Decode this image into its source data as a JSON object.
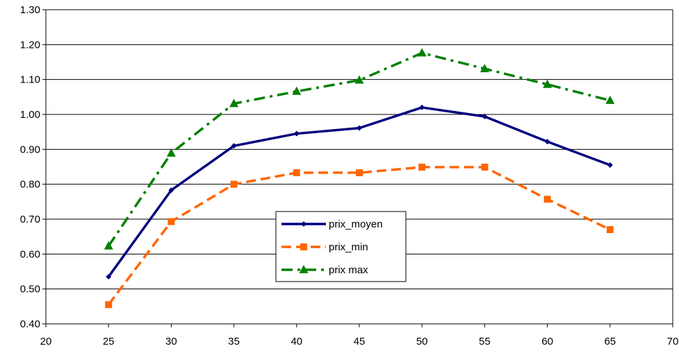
{
  "chart_data": {
    "type": "line",
    "title": "",
    "xlabel": "",
    "ylabel": "",
    "xlim": [
      20,
      70
    ],
    "ylim": [
      0.4,
      1.3
    ],
    "x_ticks": [
      "20",
      "25",
      "30",
      "35",
      "40",
      "45",
      "50",
      "55",
      "60",
      "65",
      "70"
    ],
    "y_ticks": [
      "0.40",
      "0.50",
      "0.60",
      "0.70",
      "0.80",
      "0.90",
      "1.00",
      "1.10",
      "1.20",
      "1.30"
    ],
    "grid": "horizontal",
    "legend_position": "center",
    "x": [
      25,
      30,
      35,
      40,
      45,
      50,
      55,
      60,
      65
    ],
    "series": [
      {
        "name": "prix_moyen",
        "color": "#000080",
        "dash": "solid",
        "marker": "diamond",
        "values": [
          0.535,
          0.783,
          0.91,
          0.945,
          0.961,
          1.02,
          0.994,
          0.922,
          0.855
        ]
      },
      {
        "name": "prix_min",
        "color": "#FF6600",
        "dash": "dashed",
        "marker": "square",
        "values": [
          0.455,
          0.693,
          0.8,
          0.833,
          0.833,
          0.849,
          0.849,
          0.757,
          0.67
        ]
      },
      {
        "name": "prix max",
        "color": "#008000",
        "dash": "dashdot",
        "marker": "triangle",
        "values": [
          0.623,
          0.889,
          1.031,
          1.066,
          1.098,
          1.176,
          1.131,
          1.086,
          1.04
        ]
      }
    ]
  }
}
